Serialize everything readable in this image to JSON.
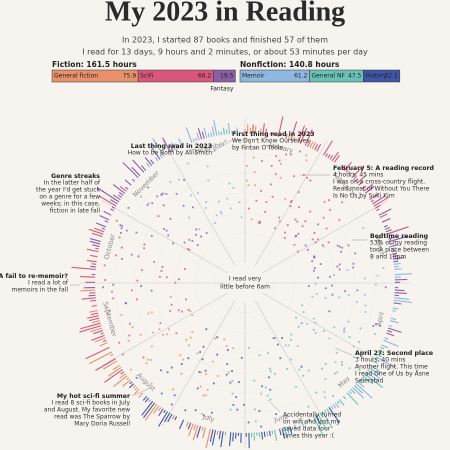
{
  "header": {
    "title": "My 2023 in Reading",
    "subtitle": [
      "In 2023, I started 87 books and finished 57 of them",
      "I read for 13 days, 9 hours and 2 minutes, or about 53 minutes per day"
    ]
  },
  "genres": {
    "fiction": {
      "label": "Fiction: 161.5 hours",
      "segments": [
        {
          "name": "General fiction",
          "value": 75.9,
          "color": "#e8916a"
        },
        {
          "name": "SciFi",
          "value": 66.2,
          "color": "#d8577a"
        },
        {
          "name": "Fantasy",
          "value": 19.5,
          "color": "#8a5fa8"
        }
      ]
    },
    "nonfiction": {
      "label": "Nonfiction: 140.8 hours",
      "segments": [
        {
          "name": "Memoir",
          "value": 61.2,
          "color": "#8fb7e0"
        },
        {
          "name": "General NF",
          "value": 47.5,
          "color": "#69c2b8"
        },
        {
          "name": "History",
          "value": 32.1,
          "color": "#3f57a8"
        }
      ]
    }
  },
  "months": [
    "January",
    "February",
    "March",
    "April",
    "May",
    "June",
    "July",
    "August",
    "September",
    "October",
    "November",
    "December"
  ],
  "center": [
    "I read very",
    "little before 6am"
  ],
  "annotations": [
    {
      "title": "Last thing read in 2023",
      "lines": [
        "How to be Both by Ali Smith"
      ]
    },
    {
      "title": "First thing read in 2023",
      "lines": [
        "We Don't Know Ourselves",
        "by Fintan O'Toole"
      ]
    },
    {
      "title": "February 5: A reading record",
      "lines": [
        "4 hours, 45 mins",
        "I was on a cross-country flight.",
        "Read most of Without You There",
        "Is No Us by Suki Kim"
      ]
    },
    {
      "title": "Bedtime reading",
      "lines": [
        "53% of my reading",
        "took place between",
        "8 and 10pm"
      ]
    },
    {
      "title": "April 27: Second place",
      "lines": [
        "3 hours, 40 mins",
        "Another flight. This time",
        "I read One of Us by Åsne",
        "Seierstad"
      ]
    },
    {
      "title": "",
      "lines": [
        "Accidentally turned",
        "on wifi and lost my",
        "saved data four",
        "times this year :("
      ]
    },
    {
      "title": "My hot sci-fi summer",
      "lines": [
        "I read 8 sci-fi books in July",
        "and August. My favorite new",
        "read was The Sparrow by",
        "Mary Doria Russell"
      ]
    },
    {
      "title": "A fail to re-memoir?",
      "lines": [
        "I read a lot of",
        "memoirs in the fall"
      ]
    },
    {
      "title": "Genre streaks",
      "lines": [
        "In the latter half of",
        "the year I'd get stuck",
        "on a genre for a few",
        "weeks; in this case,",
        "fiction in late fall"
      ]
    }
  ]
}
